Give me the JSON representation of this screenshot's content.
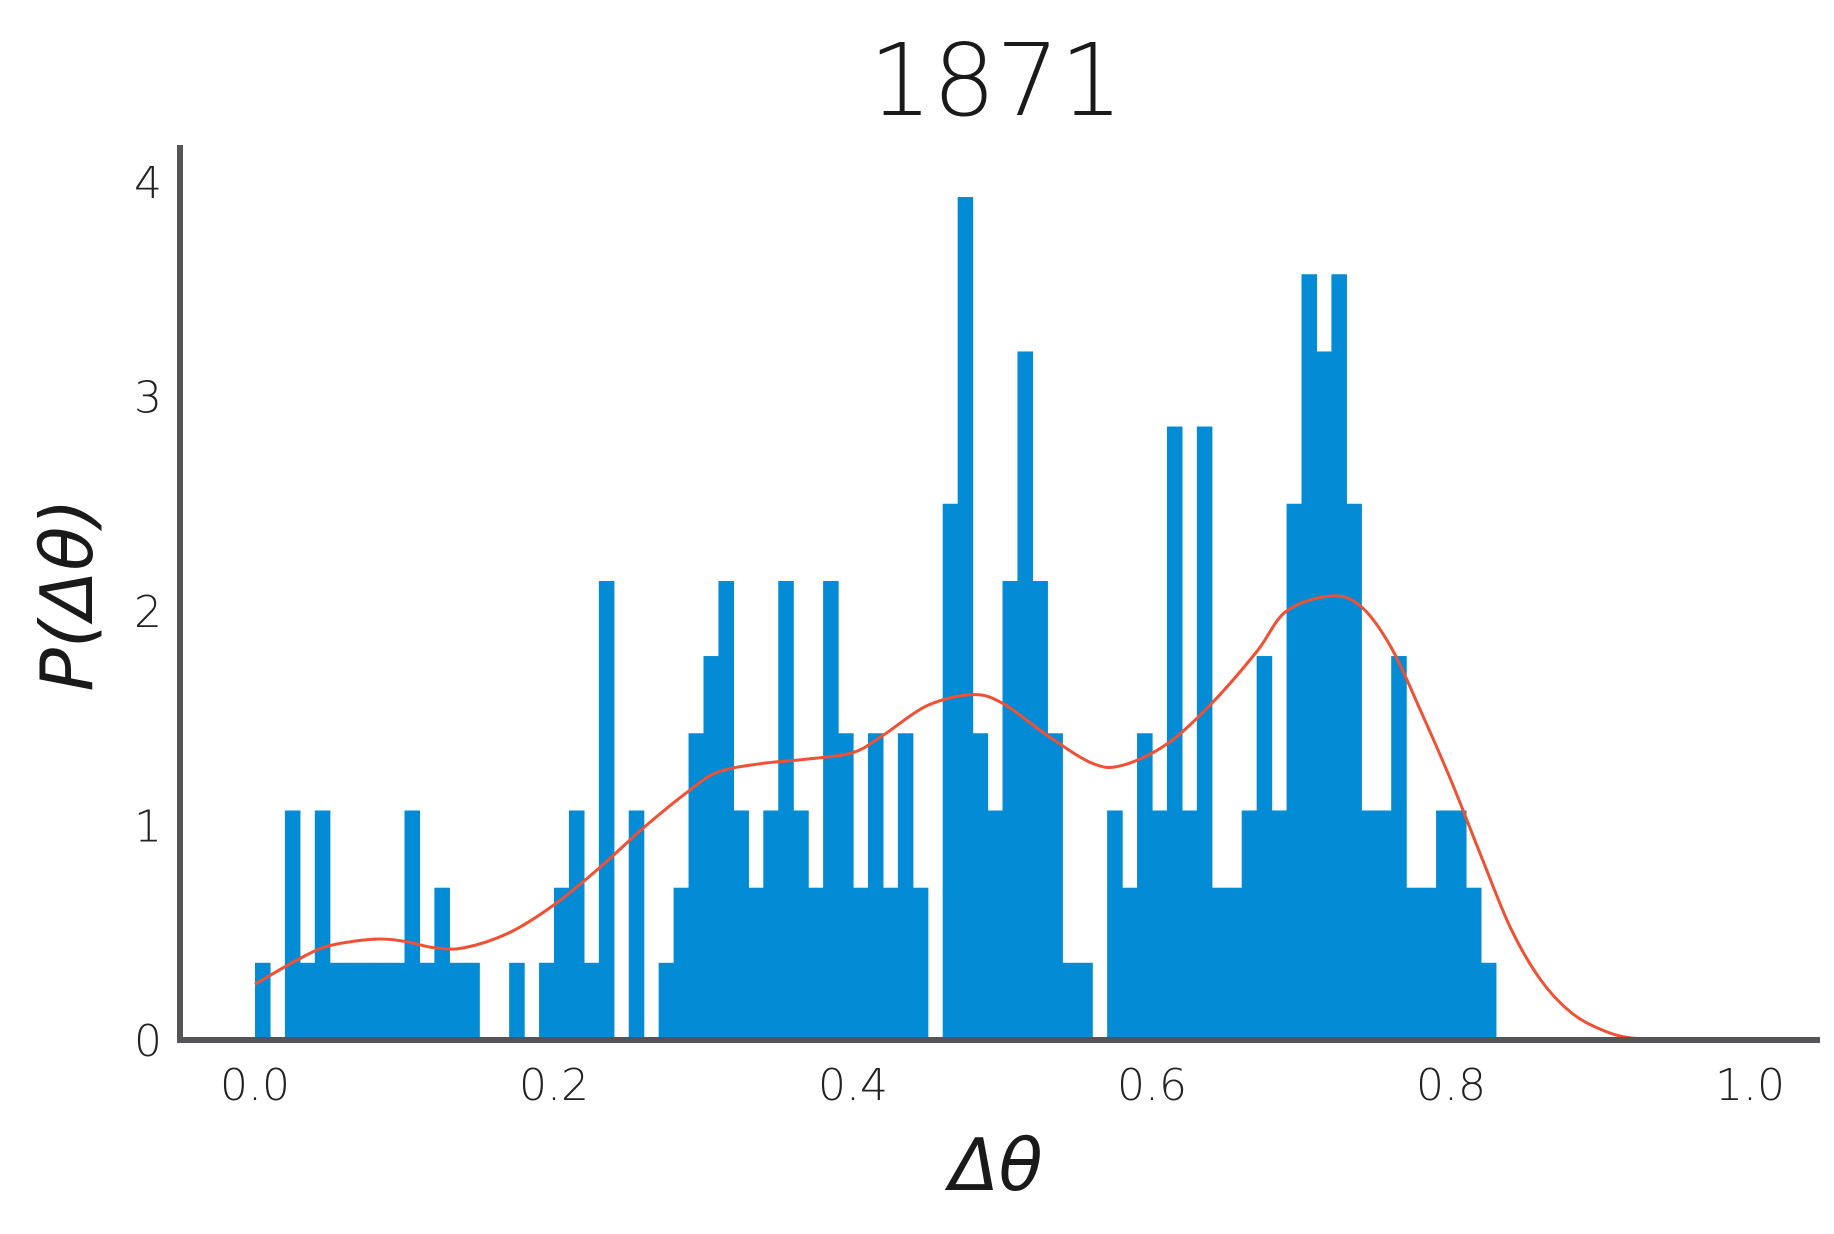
{
  "chart_data": {
    "type": "bar",
    "title": "1871",
    "xlabel": "Δθ",
    "ylabel": "P(Δθ)",
    "xlim": [
      -0.05,
      1.05
    ],
    "ylim": [
      0,
      4.1
    ],
    "x_ticks": [
      "0.0",
      "0.2",
      "0.4",
      "0.6",
      "0.8",
      "1.0"
    ],
    "x_tick_values": [
      0.0,
      0.2,
      0.4,
      0.6,
      0.8,
      1.0
    ],
    "y_ticks": [
      "0",
      "1",
      "2",
      "3",
      "4"
    ],
    "y_tick_values": [
      0,
      1,
      2,
      3,
      4
    ],
    "bin_width": 0.01,
    "bins_start": [
      0.0,
      0.01,
      0.02,
      0.03,
      0.04,
      0.05,
      0.06,
      0.07,
      0.08,
      0.09,
      0.1,
      0.11,
      0.12,
      0.13,
      0.14,
      0.15,
      0.16,
      0.17,
      0.18,
      0.19,
      0.2,
      0.21,
      0.22,
      0.23,
      0.24,
      0.25,
      0.26,
      0.27,
      0.28,
      0.29,
      0.3,
      0.31,
      0.32,
      0.33,
      0.34,
      0.35,
      0.36,
      0.37,
      0.38,
      0.39,
      0.4,
      0.41,
      0.42,
      0.43,
      0.44,
      0.45,
      0.46,
      0.47,
      0.48,
      0.49,
      0.5,
      0.51,
      0.52,
      0.53,
      0.54,
      0.55,
      0.56,
      0.57,
      0.58,
      0.59,
      0.6,
      0.61,
      0.62,
      0.63,
      0.64,
      0.65,
      0.66,
      0.67,
      0.68,
      0.69,
      0.7,
      0.71,
      0.72,
      0.73,
      0.74,
      0.75,
      0.76,
      0.77,
      0.78,
      0.79,
      0.8,
      0.81,
      0.82,
      0.83
    ],
    "values": [
      0.36,
      0,
      1.07,
      0.36,
      1.07,
      0.36,
      0.36,
      0.36,
      0.36,
      0.36,
      1.07,
      0.36,
      0.71,
      0.36,
      0.36,
      0,
      0,
      0.36,
      0,
      0.36,
      0.71,
      1.07,
      0.36,
      2.14,
      0,
      1.07,
      0,
      0.36,
      0.71,
      1.43,
      1.79,
      2.14,
      1.07,
      0.71,
      1.07,
      2.14,
      1.07,
      0.71,
      2.14,
      1.43,
      0.71,
      1.43,
      0.71,
      1.43,
      0.71,
      0,
      2.5,
      3.93,
      1.43,
      1.07,
      2.14,
      3.21,
      2.14,
      1.43,
      0.36,
      0.36,
      0,
      1.07,
      0.71,
      1.43,
      1.07,
      2.86,
      1.07,
      2.86,
      0.71,
      0.71,
      1.07,
      1.79,
      1.07,
      2.5,
      3.57,
      3.21,
      3.57,
      2.5,
      1.07,
      1.07,
      1.79,
      0.71,
      0.71,
      1.07,
      1.07,
      0.71,
      0.36,
      0
    ],
    "bar_color": "#038CD5",
    "kde": {
      "color": "#F05033",
      "x": [
        0.0,
        0.03,
        0.05,
        0.08,
        0.1,
        0.12,
        0.14,
        0.17,
        0.2,
        0.23,
        0.26,
        0.29,
        0.31,
        0.34,
        0.37,
        0.4,
        0.42,
        0.45,
        0.48,
        0.5,
        0.53,
        0.56,
        0.58,
        0.61,
        0.64,
        0.67,
        0.69,
        0.72,
        0.74,
        0.76,
        0.78,
        0.8,
        0.82,
        0.84,
        0.86,
        0.88,
        0.9,
        0.92,
        0.95,
        0.97
      ],
      "y": [
        0.26,
        0.38,
        0.44,
        0.47,
        0.46,
        0.43,
        0.43,
        0.5,
        0.63,
        0.8,
        0.99,
        1.16,
        1.25,
        1.29,
        1.31,
        1.34,
        1.42,
        1.56,
        1.61,
        1.57,
        1.42,
        1.29,
        1.28,
        1.38,
        1.57,
        1.81,
        2.0,
        2.07,
        2.02,
        1.83,
        1.53,
        1.21,
        0.86,
        0.52,
        0.28,
        0.13,
        0.05,
        0.01,
        0.005,
        0.0
      ]
    }
  },
  "colors": {
    "axis": "#555559"
  }
}
